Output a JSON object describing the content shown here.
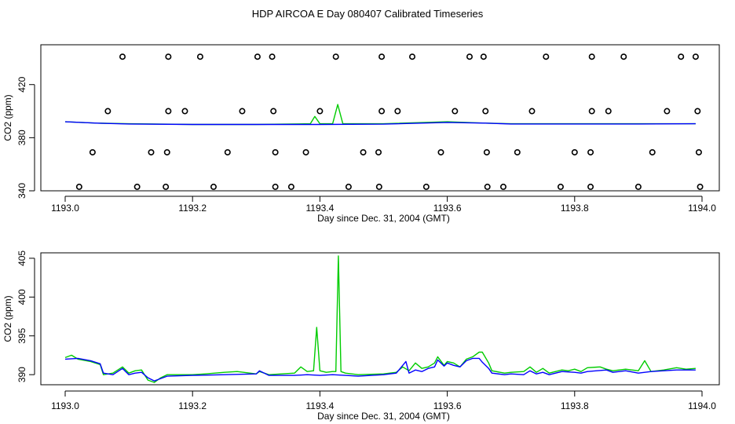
{
  "title": "HDP AIRCOA E  Day 080407  Calibrated Timeseries",
  "colors": {
    "measured": "#00cc00",
    "smoothed": "#0000ff",
    "markers": "#000000"
  },
  "chart_data": [
    {
      "type": "line",
      "xlabel": "Day since Dec. 31, 2004 (GMT)",
      "ylabel": "CO2 (ppm)",
      "xlim": [
        1193.0,
        1194.0
      ],
      "ylim": [
        340,
        450
      ],
      "xticks": [
        "1193.0",
        "1193.2",
        "1193.4",
        "1193.6",
        "1193.8",
        "1194.0"
      ],
      "yticks": [
        "340",
        "380",
        "420"
      ],
      "grid": false,
      "series": [
        {
          "style": "markers",
          "points": [
            [
              1193.09,
              441
            ],
            [
              1193.162,
              441
            ],
            [
              1193.212,
              441
            ],
            [
              1193.302,
              441
            ],
            [
              1193.325,
              441
            ],
            [
              1193.425,
              441
            ],
            [
              1193.497,
              441
            ],
            [
              1193.545,
              441
            ],
            [
              1193.635,
              441
            ],
            [
              1193.657,
              441
            ],
            [
              1193.755,
              441
            ],
            [
              1193.827,
              441
            ],
            [
              1193.877,
              441
            ],
            [
              1193.967,
              441
            ],
            [
              1193.99,
              441
            ],
            [
              1193.067,
              400
            ],
            [
              1193.162,
              400
            ],
            [
              1193.188,
              400
            ],
            [
              1193.278,
              400
            ],
            [
              1193.327,
              400
            ],
            [
              1193.4,
              400
            ],
            [
              1193.497,
              400
            ],
            [
              1193.522,
              400
            ],
            [
              1193.612,
              400
            ],
            [
              1193.66,
              400
            ],
            [
              1193.733,
              400
            ],
            [
              1193.827,
              400
            ],
            [
              1193.853,
              400
            ],
            [
              1193.945,
              400
            ],
            [
              1193.993,
              400
            ],
            [
              1193.043,
              369
            ],
            [
              1193.135,
              369
            ],
            [
              1193.16,
              369
            ],
            [
              1193.255,
              369
            ],
            [
              1193.33,
              369
            ],
            [
              1193.378,
              369
            ],
            [
              1193.468,
              369
            ],
            [
              1193.492,
              369
            ],
            [
              1193.59,
              369
            ],
            [
              1193.662,
              369
            ],
            [
              1193.71,
              369
            ],
            [
              1193.8,
              369
            ],
            [
              1193.825,
              369
            ],
            [
              1193.922,
              369
            ],
            [
              1193.995,
              369
            ],
            [
              1193.022,
              343
            ],
            [
              1193.113,
              343
            ],
            [
              1193.158,
              343
            ],
            [
              1193.233,
              343
            ],
            [
              1193.33,
              343
            ],
            [
              1193.355,
              343
            ],
            [
              1193.445,
              343
            ],
            [
              1193.493,
              343
            ],
            [
              1193.567,
              343
            ],
            [
              1193.663,
              343
            ],
            [
              1193.688,
              343
            ],
            [
              1193.778,
              343
            ],
            [
              1193.825,
              343
            ],
            [
              1193.9,
              343
            ],
            [
              1193.997,
              343
            ]
          ]
        },
        {
          "style": "line",
          "color": "#00cc00",
          "points": [
            [
              1193.0,
              392
            ],
            [
              1193.05,
              391
            ],
            [
              1193.1,
              390.5
            ],
            [
              1193.2,
              390
            ],
            [
              1193.3,
              390
            ],
            [
              1193.385,
              390.5
            ],
            [
              1193.392,
              396
            ],
            [
              1193.4,
              390.5
            ],
            [
              1193.42,
              390.5
            ],
            [
              1193.428,
              405
            ],
            [
              1193.436,
              390.5
            ],
            [
              1193.5,
              390.5
            ],
            [
              1193.6,
              392
            ],
            [
              1193.66,
              391
            ],
            [
              1193.7,
              390.5
            ],
            [
              1193.8,
              390.5
            ],
            [
              1193.9,
              390.5
            ],
            [
              1193.99,
              390.5
            ]
          ]
        },
        {
          "style": "line",
          "color": "#0000ff",
          "points": [
            [
              1193.0,
              392
            ],
            [
              1193.05,
              391
            ],
            [
              1193.1,
              390.3
            ],
            [
              1193.2,
              390
            ],
            [
              1193.3,
              390
            ],
            [
              1193.4,
              390
            ],
            [
              1193.5,
              390.2
            ],
            [
              1193.6,
              391.5
            ],
            [
              1193.66,
              391
            ],
            [
              1193.7,
              390.3
            ],
            [
              1193.8,
              390.3
            ],
            [
              1193.9,
              390.3
            ],
            [
              1193.99,
              390.5
            ]
          ]
        }
      ]
    },
    {
      "type": "line",
      "xlabel": "Day since Dec. 31, 2004 (GMT)",
      "ylabel": "CO2 (ppm)",
      "xlim": [
        1193.0,
        1194.0
      ],
      "ylim": [
        388.7,
        405.7
      ],
      "xticks": [
        "1193.0",
        "1193.2",
        "1193.4",
        "1193.6",
        "1193.8",
        "1194.0"
      ],
      "yticks": [
        "390",
        "395",
        "400",
        "405"
      ],
      "grid": false,
      "series": [
        {
          "style": "line",
          "color": "#00cc00",
          "points": [
            [
              1193.0,
              392.2
            ],
            [
              1193.01,
              392.5
            ],
            [
              1193.02,
              392.0
            ],
            [
              1193.04,
              391.7
            ],
            [
              1193.055,
              391.3
            ],
            [
              1193.06,
              390.0
            ],
            [
              1193.075,
              390.2
            ],
            [
              1193.09,
              391.0
            ],
            [
              1193.1,
              390.2
            ],
            [
              1193.11,
              390.5
            ],
            [
              1193.12,
              390.6
            ],
            [
              1193.13,
              389.3
            ],
            [
              1193.14,
              389.0
            ],
            [
              1193.15,
              389.6
            ],
            [
              1193.16,
              390.0
            ],
            [
              1193.2,
              390.0
            ],
            [
              1193.22,
              390.1
            ],
            [
              1193.25,
              390.3
            ],
            [
              1193.27,
              390.4
            ],
            [
              1193.3,
              390.1
            ],
            [
              1193.305,
              390.4
            ],
            [
              1193.32,
              390.0
            ],
            [
              1193.36,
              390.2
            ],
            [
              1193.37,
              391.0
            ],
            [
              1193.38,
              390.4
            ],
            [
              1193.39,
              390.5
            ],
            [
              1193.395,
              396.1
            ],
            [
              1193.4,
              390.5
            ],
            [
              1193.41,
              390.3
            ],
            [
              1193.42,
              390.4
            ],
            [
              1193.425,
              390.4
            ],
            [
              1193.429,
              405.3
            ],
            [
              1193.433,
              390.4
            ],
            [
              1193.44,
              390.2
            ],
            [
              1193.46,
              390.0
            ],
            [
              1193.5,
              390.1
            ],
            [
              1193.52,
              390.3
            ],
            [
              1193.53,
              391.0
            ],
            [
              1193.54,
              390.5
            ],
            [
              1193.55,
              391.5
            ],
            [
              1193.56,
              390.8
            ],
            [
              1193.57,
              391.0
            ],
            [
              1193.58,
              391.5
            ],
            [
              1193.585,
              392.3
            ],
            [
              1193.595,
              391.2
            ],
            [
              1193.6,
              391.7
            ],
            [
              1193.61,
              391.5
            ],
            [
              1193.62,
              391.0
            ],
            [
              1193.63,
              392.0
            ],
            [
              1193.64,
              392.3
            ],
            [
              1193.65,
              392.9
            ],
            [
              1193.655,
              392.9
            ],
            [
              1193.665,
              391.5
            ],
            [
              1193.67,
              390.5
            ],
            [
              1193.69,
              390.2
            ],
            [
              1193.7,
              390.3
            ],
            [
              1193.72,
              390.4
            ],
            [
              1193.73,
              391.0
            ],
            [
              1193.74,
              390.3
            ],
            [
              1193.75,
              390.8
            ],
            [
              1193.76,
              390.2
            ],
            [
              1193.78,
              390.6
            ],
            [
              1193.79,
              390.5
            ],
            [
              1193.8,
              390.7
            ],
            [
              1193.81,
              390.4
            ],
            [
              1193.82,
              390.9
            ],
            [
              1193.84,
              391.0
            ],
            [
              1193.85,
              390.7
            ],
            [
              1193.86,
              390.5
            ],
            [
              1193.88,
              390.7
            ],
            [
              1193.9,
              390.5
            ],
            [
              1193.91,
              391.8
            ],
            [
              1193.92,
              390.4
            ],
            [
              1193.94,
              390.6
            ],
            [
              1193.96,
              390.9
            ],
            [
              1193.975,
              390.7
            ],
            [
              1193.99,
              390.8
            ]
          ]
        },
        {
          "style": "line",
          "color": "#0000ff",
          "points": [
            [
              1193.0,
              392.0
            ],
            [
              1193.02,
              392.1
            ],
            [
              1193.04,
              391.8
            ],
            [
              1193.055,
              391.4
            ],
            [
              1193.06,
              390.2
            ],
            [
              1193.075,
              390.0
            ],
            [
              1193.09,
              390.8
            ],
            [
              1193.1,
              390.0
            ],
            [
              1193.11,
              390.2
            ],
            [
              1193.12,
              390.3
            ],
            [
              1193.13,
              389.6
            ],
            [
              1193.14,
              389.2
            ],
            [
              1193.15,
              389.5
            ],
            [
              1193.16,
              389.8
            ],
            [
              1193.2,
              389.9
            ],
            [
              1193.25,
              390.0
            ],
            [
              1193.3,
              390.1
            ],
            [
              1193.305,
              390.5
            ],
            [
              1193.32,
              389.9
            ],
            [
              1193.36,
              389.9
            ],
            [
              1193.38,
              390.0
            ],
            [
              1193.4,
              389.9
            ],
            [
              1193.42,
              390.0
            ],
            [
              1193.44,
              389.9
            ],
            [
              1193.46,
              389.8
            ],
            [
              1193.5,
              390.0
            ],
            [
              1193.52,
              390.2
            ],
            [
              1193.535,
              391.7
            ],
            [
              1193.54,
              390.2
            ],
            [
              1193.55,
              390.6
            ],
            [
              1193.56,
              390.4
            ],
            [
              1193.57,
              390.8
            ],
            [
              1193.58,
              391.0
            ],
            [
              1193.585,
              391.9
            ],
            [
              1193.595,
              391.1
            ],
            [
              1193.6,
              391.5
            ],
            [
              1193.61,
              391.2
            ],
            [
              1193.62,
              391.0
            ],
            [
              1193.63,
              391.8
            ],
            [
              1193.64,
              392.1
            ],
            [
              1193.65,
              392.1
            ],
            [
              1193.655,
              391.6
            ],
            [
              1193.665,
              390.8
            ],
            [
              1193.67,
              390.2
            ],
            [
              1193.69,
              390.0
            ],
            [
              1193.7,
              390.1
            ],
            [
              1193.72,
              390.0
            ],
            [
              1193.73,
              390.5
            ],
            [
              1193.74,
              390.1
            ],
            [
              1193.75,
              390.3
            ],
            [
              1193.76,
              390.0
            ],
            [
              1193.78,
              390.4
            ],
            [
              1193.8,
              390.3
            ],
            [
              1193.81,
              390.2
            ],
            [
              1193.82,
              390.4
            ],
            [
              1193.85,
              390.6
            ],
            [
              1193.86,
              390.3
            ],
            [
              1193.88,
              390.5
            ],
            [
              1193.9,
              390.2
            ],
            [
              1193.92,
              390.4
            ],
            [
              1193.94,
              390.5
            ],
            [
              1193.96,
              390.6
            ],
            [
              1193.98,
              390.6
            ],
            [
              1193.99,
              390.6
            ]
          ]
        }
      ]
    }
  ]
}
